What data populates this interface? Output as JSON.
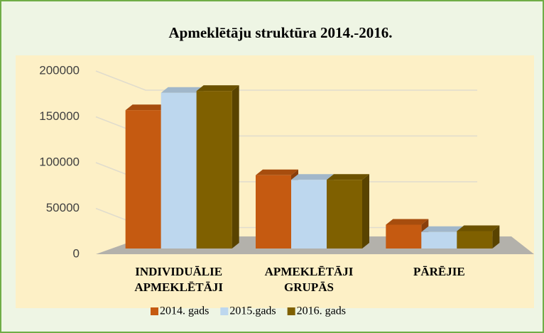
{
  "chart_data": {
    "type": "bar3d",
    "title": "Apmeklētāju struktūra 2014.-2016.",
    "categories": [
      "INDIVIDUĀLIE APMEKLĒTĀJI",
      "APMEKLĒTĀJI GRUPĀS",
      "PĀRĒJIE"
    ],
    "series": [
      {
        "name": "2014. gads",
        "color": "#c55a11",
        "values": [
          151000,
          80000,
          26000
        ]
      },
      {
        "name": "2015.gads",
        "color": "#bdd7ee",
        "values": [
          170000,
          75000,
          18000
        ]
      },
      {
        "name": "2016. gads",
        "color": "#7f6000",
        "values": [
          172000,
          75000,
          19000
        ]
      }
    ],
    "ylim": [
      0,
      200000
    ],
    "yticks": [
      0,
      50000,
      100000,
      150000,
      200000
    ],
    "grid": true,
    "legend": "bottom"
  }
}
